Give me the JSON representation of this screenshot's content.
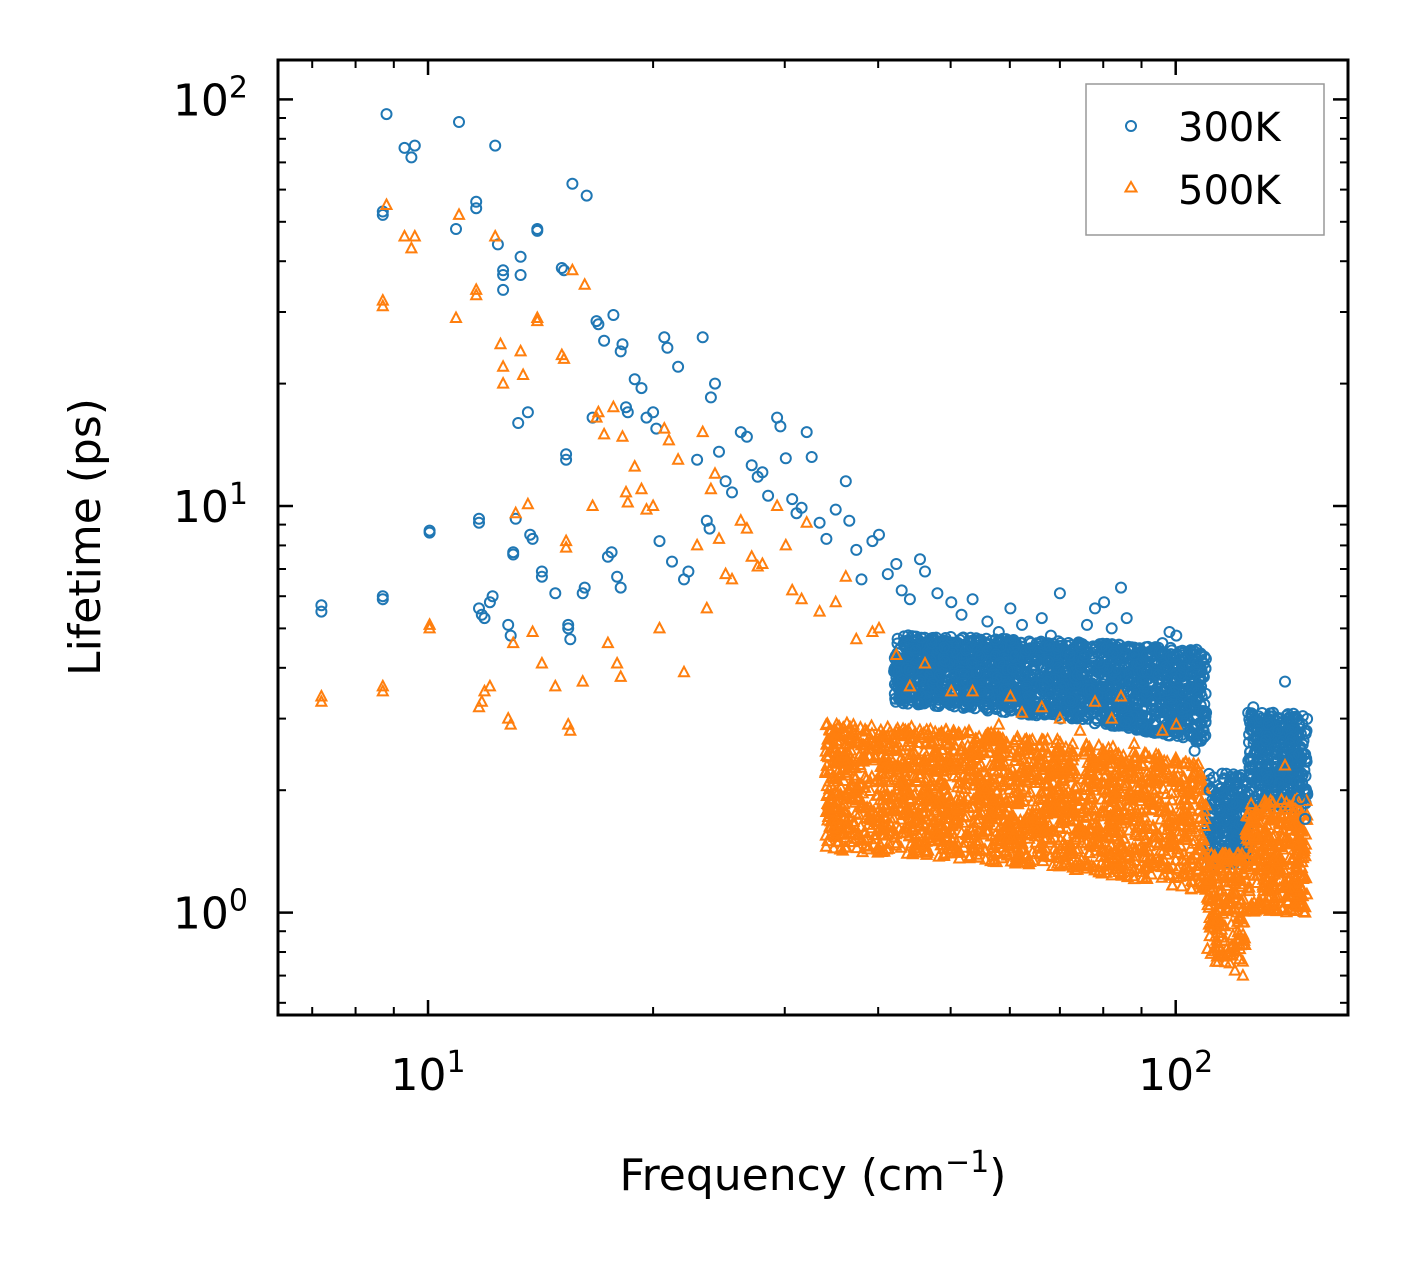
{
  "chart_data": {
    "type": "scatter",
    "xscale": "log",
    "yscale": "log",
    "xlim": [
      6.3,
      170
    ],
    "ylim": [
      0.56,
      125
    ],
    "xlabel": "Frequency (cm",
    "xlabel_exp": "−1",
    "xlabel_end": ")",
    "ylabel": "Lifetime (ps)",
    "x_ticks": [
      {
        "value": 10,
        "base": "10",
        "exp": "1"
      },
      {
        "value": 100,
        "base": "10",
        "exp": "2"
      }
    ],
    "y_ticks": [
      {
        "value": 1,
        "base": "10",
        "exp": "0"
      },
      {
        "value": 10,
        "base": "10",
        "exp": "1"
      },
      {
        "value": 100,
        "base": "10",
        "exp": "2"
      }
    ],
    "legend_position": "top-right",
    "series": [
      {
        "name": "300K",
        "color": "#1f77b4",
        "marker": "circle",
        "points": [
          [
            7.2,
            5.5
          ],
          [
            7.2,
            5.7
          ],
          [
            8.7,
            6.0
          ],
          [
            8.7,
            5.9
          ],
          [
            8.7,
            52
          ],
          [
            8.7,
            53
          ],
          [
            8.8,
            92
          ],
          [
            9.3,
            76
          ],
          [
            9.5,
            72
          ],
          [
            9.6,
            77
          ],
          [
            10.05,
            8.6
          ],
          [
            10.05,
            8.7
          ],
          [
            10.9,
            48
          ],
          [
            11,
            88
          ],
          [
            11.6,
            54
          ],
          [
            11.6,
            56
          ],
          [
            11.7,
            9.3
          ],
          [
            11.7,
            9.1
          ],
          [
            11.7,
            5.6
          ],
          [
            11.8,
            5.4
          ],
          [
            11.9,
            5.3
          ],
          [
            12.1,
            5.8
          ],
          [
            12.2,
            6.0
          ],
          [
            12.3,
            77
          ],
          [
            12.4,
            44
          ],
          [
            12.6,
            34
          ],
          [
            12.6,
            37
          ],
          [
            12.6,
            38
          ],
          [
            12.8,
            5.1
          ],
          [
            12.9,
            4.8
          ],
          [
            13.0,
            7.6
          ],
          [
            13.0,
            7.7
          ],
          [
            13.1,
            9.3
          ],
          [
            13.2,
            16
          ],
          [
            13.3,
            41
          ],
          [
            13.3,
            37
          ],
          [
            13.6,
            17
          ],
          [
            13.7,
            8.5
          ],
          [
            13.8,
            8.3
          ],
          [
            14.0,
            48
          ],
          [
            14.0,
            47.5
          ],
          [
            14.2,
            6.9
          ],
          [
            14.2,
            6.7
          ],
          [
            14.8,
            6.1
          ],
          [
            15.1,
            38.5
          ],
          [
            15.2,
            38
          ],
          [
            15.3,
            13.4
          ],
          [
            15.3,
            13.0
          ],
          [
            15.4,
            5.0
          ],
          [
            15.4,
            5.1
          ],
          [
            15.5,
            4.7
          ],
          [
            15.6,
            62
          ],
          [
            16.3,
            58
          ],
          [
            16.2,
            6.3
          ],
          [
            16.1,
            6.1
          ],
          [
            16.6,
            16.5
          ],
          [
            16.8,
            28.5
          ],
          [
            16.9,
            28
          ],
          [
            17.2,
            25.5
          ],
          [
            17.4,
            7.5
          ],
          [
            17.6,
            7.7
          ],
          [
            17.7,
            29.5
          ],
          [
            17.9,
            6.7
          ],
          [
            18.1,
            6.3
          ],
          [
            18.2,
            25
          ],
          [
            18.1,
            24
          ],
          [
            18.4,
            17.5
          ],
          [
            18.5,
            17.0
          ],
          [
            18.9,
            20.5
          ],
          [
            19.3,
            19.5
          ],
          [
            19.6,
            16.5
          ],
          [
            20.0,
            17.0
          ],
          [
            20.2,
            15.5
          ],
          [
            20.4,
            8.2
          ],
          [
            20.7,
            26
          ],
          [
            20.9,
            24.5
          ],
          [
            21.2,
            7.3
          ],
          [
            21.6,
            22
          ],
          [
            22.0,
            6.6
          ],
          [
            22.3,
            6.9
          ],
          [
            22.9,
            13.0
          ],
          [
            23.3,
            26
          ],
          [
            23.6,
            9.2
          ],
          [
            23.8,
            8.8
          ],
          [
            23.9,
            18.5
          ],
          [
            24.2,
            20
          ],
          [
            24.5,
            13.6
          ],
          [
            25.0,
            11.5
          ],
          [
            25.5,
            10.8
          ],
          [
            26.2,
            15.2
          ],
          [
            26.7,
            14.8
          ],
          [
            27.1,
            12.6
          ],
          [
            27.6,
            11.8
          ],
          [
            28.0,
            12.1
          ],
          [
            28.5,
            10.6
          ],
          [
            29.3,
            16.5
          ],
          [
            29.6,
            15.7
          ],
          [
            30.1,
            13.1
          ],
          [
            30.7,
            10.4
          ],
          [
            31.1,
            9.6
          ],
          [
            31.6,
            9.9
          ],
          [
            32.1,
            15.2
          ],
          [
            32.6,
            13.2
          ],
          [
            33.4,
            9.1
          ],
          [
            34.1,
            8.3
          ],
          [
            35.1,
            9.8
          ],
          [
            36.2,
            11.5
          ],
          [
            36.6,
            9.2
          ],
          [
            37.4,
            7.8
          ],
          [
            38.0,
            6.6
          ],
          [
            39.3,
            8.2
          ],
          [
            40.1,
            8.5
          ],
          [
            41.2,
            6.8
          ],
          [
            42.3,
            7.2
          ],
          [
            43.0,
            6.2
          ],
          [
            44.1,
            5.9
          ],
          [
            45.5,
            7.4
          ],
          [
            46.2,
            6.9
          ],
          [
            48.0,
            6.1
          ],
          [
            50.1,
            5.8
          ],
          [
            51.7,
            5.4
          ],
          [
            53.5,
            5.9
          ],
          [
            56.0,
            5.2
          ],
          [
            58.0,
            4.9
          ],
          [
            60.1,
            5.6
          ],
          [
            62.3,
            5.1
          ],
          [
            64.0,
            4.6
          ],
          [
            66.2,
            5.3
          ],
          [
            68.1,
            4.8
          ],
          [
            70.0,
            6.1
          ],
          [
            72.2,
            4.3
          ],
          [
            74.5,
            4.6
          ],
          [
            76.1,
            5.1
          ],
          [
            78.0,
            5.6
          ],
          [
            80.2,
            5.8
          ],
          [
            82.1,
            5.0
          ],
          [
            84.5,
            6.3
          ],
          [
            86.0,
            5.3
          ],
          [
            88.0,
            4.3
          ],
          [
            90.3,
            3.7
          ],
          [
            93.1,
            3.3
          ],
          [
            96.0,
            4.6
          ],
          [
            98.1,
            4.9
          ],
          [
            100.2,
            4.8
          ],
          [
            103,
            3.2
          ],
          [
            106,
            2.5
          ],
          [
            109,
            2.8
          ],
          [
            111,
            2.0
          ],
          [
            115,
            1.6
          ],
          [
            118,
            1.9
          ],
          [
            120,
            1.5
          ],
          [
            123,
            2.1
          ],
          [
            125,
            3.1
          ],
          [
            127,
            3.2
          ],
          [
            130,
            3.0
          ],
          [
            133,
            2.9
          ],
          [
            135,
            3.1
          ],
          [
            137,
            2.8
          ],
          [
            140,
            3.7
          ],
          [
            142,
            2.6
          ],
          [
            145,
            2.3
          ],
          [
            147,
            1.9
          ],
          [
            149,
            1.7
          ]
        ]
      },
      {
        "name": "500K",
        "color": "#ff7f0e",
        "marker": "triangle",
        "points": [
          [
            7.2,
            3.4
          ],
          [
            7.2,
            3.3
          ],
          [
            8.7,
            3.6
          ],
          [
            8.7,
            3.5
          ],
          [
            8.7,
            32
          ],
          [
            8.7,
            31
          ],
          [
            8.8,
            55
          ],
          [
            9.3,
            46
          ],
          [
            9.5,
            43
          ],
          [
            9.6,
            46
          ],
          [
            10.05,
            5.0
          ],
          [
            10.05,
            5.1
          ],
          [
            10.9,
            29
          ],
          [
            11.0,
            52
          ],
          [
            11.6,
            34
          ],
          [
            11.6,
            33
          ],
          [
            11.7,
            3.2
          ],
          [
            11.8,
            3.3
          ],
          [
            11.9,
            3.5
          ],
          [
            12.1,
            3.6
          ],
          [
            12.3,
            46
          ],
          [
            12.5,
            25
          ],
          [
            12.6,
            22
          ],
          [
            12.6,
            20
          ],
          [
            12.8,
            3.0
          ],
          [
            12.9,
            2.9
          ],
          [
            13.0,
            4.6
          ],
          [
            13.1,
            9.6
          ],
          [
            13.3,
            24
          ],
          [
            13.4,
            21
          ],
          [
            13.6,
            10.1
          ],
          [
            13.8,
            4.9
          ],
          [
            14.0,
            29
          ],
          [
            14.0,
            28.5
          ],
          [
            14.2,
            4.1
          ],
          [
            14.8,
            3.6
          ],
          [
            15.1,
            23.5
          ],
          [
            15.2,
            23
          ],
          [
            15.3,
            8.2
          ],
          [
            15.3,
            7.9
          ],
          [
            15.4,
            2.9
          ],
          [
            15.5,
            2.8
          ],
          [
            15.6,
            38
          ],
          [
            16.2,
            35
          ],
          [
            16.1,
            3.7
          ],
          [
            16.6,
            10.0
          ],
          [
            16.8,
            16.5
          ],
          [
            16.9,
            17.0
          ],
          [
            17.2,
            15.0
          ],
          [
            17.4,
            4.6
          ],
          [
            17.7,
            17.5
          ],
          [
            17.9,
            4.1
          ],
          [
            18.1,
            3.8
          ],
          [
            18.2,
            14.8
          ],
          [
            18.4,
            10.8
          ],
          [
            18.5,
            10.2
          ],
          [
            18.9,
            12.5
          ],
          [
            19.3,
            11.0
          ],
          [
            19.6,
            9.8
          ],
          [
            20.0,
            10.0
          ],
          [
            20.4,
            5.0
          ],
          [
            20.7,
            15.5
          ],
          [
            21.0,
            14.5
          ],
          [
            21.6,
            13.0
          ],
          [
            22.0,
            3.9
          ],
          [
            22.9,
            8.0
          ],
          [
            23.3,
            15.2
          ],
          [
            23.6,
            5.6
          ],
          [
            23.9,
            11.0
          ],
          [
            24.2,
            12.0
          ],
          [
            24.5,
            8.3
          ],
          [
            25.0,
            6.8
          ],
          [
            25.5,
            6.6
          ],
          [
            26.2,
            9.2
          ],
          [
            26.7,
            8.8
          ],
          [
            27.1,
            7.5
          ],
          [
            27.6,
            7.1
          ],
          [
            28.0,
            7.2
          ],
          [
            29.3,
            10.0
          ],
          [
            30.1,
            8.0
          ],
          [
            30.7,
            6.2
          ],
          [
            31.6,
            5.9
          ],
          [
            32.1,
            9.1
          ],
          [
            33.4,
            5.5
          ],
          [
            35.1,
            5.8
          ],
          [
            36.2,
            6.7
          ],
          [
            37.4,
            4.7
          ],
          [
            39.3,
            4.9
          ],
          [
            40.1,
            5.0
          ],
          [
            42.3,
            4.3
          ],
          [
            44.1,
            3.6
          ],
          [
            46.2,
            4.1
          ],
          [
            50.1,
            3.5
          ],
          [
            53.5,
            3.5
          ],
          [
            58.0,
            2.9
          ],
          [
            60.1,
            3.4
          ],
          [
            62.3,
            3.1
          ],
          [
            66.2,
            3.2
          ],
          [
            70.0,
            3.0
          ],
          [
            74.5,
            2.8
          ],
          [
            78.0,
            3.3
          ],
          [
            82.1,
            3.0
          ],
          [
            84.5,
            3.4
          ],
          [
            88.0,
            2.6
          ],
          [
            90.3,
            2.4
          ],
          [
            96.0,
            2.8
          ],
          [
            100.2,
            2.9
          ],
          [
            106,
            1.5
          ],
          [
            111,
            1.2
          ],
          [
            115,
            0.95
          ],
          [
            118,
            0.8
          ],
          [
            120,
            0.72
          ],
          [
            123,
            0.7
          ],
          [
            125,
            1.6
          ],
          [
            127,
            1.7
          ],
          [
            130,
            1.6
          ],
          [
            133,
            1.5
          ],
          [
            135,
            1.7
          ],
          [
            137,
            1.8
          ],
          [
            140,
            2.3
          ],
          [
            142,
            1.5
          ],
          [
            145,
            1.3
          ],
          [
            147,
            1.15
          ],
          [
            149,
            1.0
          ]
        ]
      }
    ]
  }
}
